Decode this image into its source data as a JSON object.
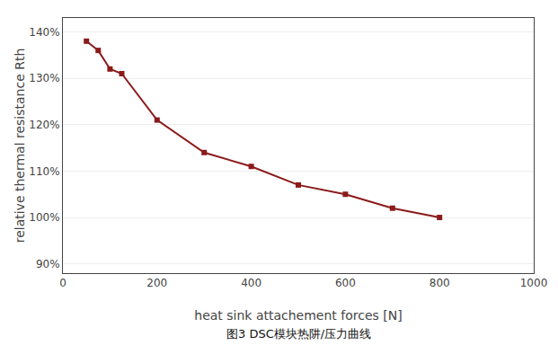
{
  "chart_data": {
    "type": "line",
    "x": [
      50,
      75,
      100,
      125,
      200,
      300,
      400,
      500,
      600,
      700,
      800
    ],
    "values": [
      138,
      136,
      132,
      131,
      121,
      114,
      111,
      107,
      105,
      102,
      100
    ],
    "color": "#8B1A1A",
    "marker": "square",
    "x_label": "heat sink attachement forces [N]",
    "y_label": "relative thermal resistance Rth",
    "caption": "图3 DSC模块热阱/压力曲线",
    "xlim": [
      0,
      1000
    ],
    "ylim": [
      88,
      143
    ],
    "xticks": [
      0,
      200,
      400,
      600,
      800,
      1000
    ],
    "yticks": [
      {
        "value": 90,
        "label": "90%"
      },
      {
        "value": 100,
        "label": "100%"
      },
      {
        "value": 110,
        "label": "110%"
      },
      {
        "value": 120,
        "label": "120%"
      },
      {
        "value": 130,
        "label": "130%"
      },
      {
        "value": 140,
        "label": "140%"
      }
    ],
    "grid": "y"
  }
}
